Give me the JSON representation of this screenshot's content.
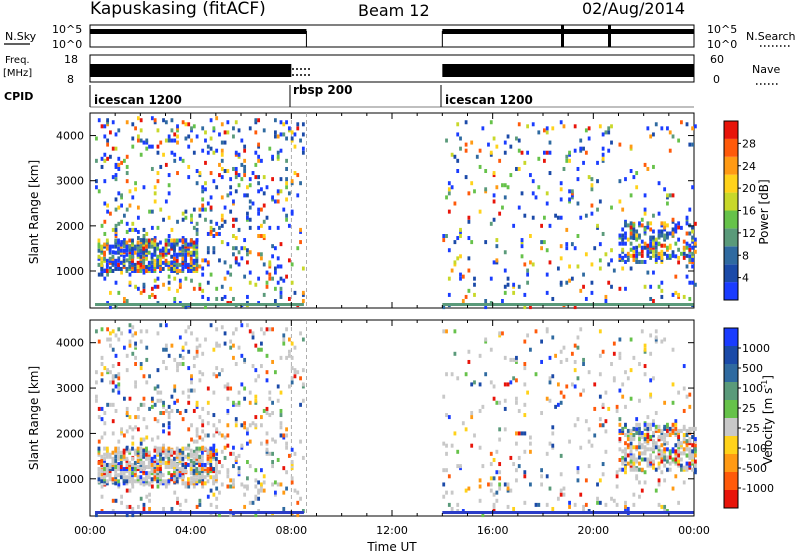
{
  "header": {
    "station": "Kapuskasing (fitACF)",
    "beam": "Beam 12",
    "date": "02/Aug/2014"
  },
  "labels": {
    "nsky": "N.Sky",
    "nsearch": "N.Search",
    "freq": "Freq.",
    "freq_unit": "[MHz]",
    "nave": "Nave",
    "cpid": "CPID",
    "slant_range": "Slant Range [km]",
    "power": "Power [dB]",
    "velocity": "Velocity  [m s",
    "velocity_sup": "-1",
    "velocity_close": "]",
    "time_ut": "Time UT"
  },
  "noise_panel": {
    "left_ticks": [
      "10^5",
      "10^0"
    ],
    "right_ticks": [
      "10^5",
      "10^0"
    ],
    "data_segments_ut": [
      [
        0.0,
        8.6
      ],
      [
        14.0,
        24.0
      ]
    ]
  },
  "freq_panel": {
    "left_ticks": [
      "18",
      "8"
    ],
    "right_ticks": [
      "60",
      "0"
    ],
    "data_segments_ut": [
      [
        0.0,
        8.0
      ],
      [
        14.0,
        24.0
      ]
    ]
  },
  "cpid_panel": {
    "segments": [
      {
        "start": 0.0,
        "label": "icescan 1200"
      },
      {
        "start": 8.0,
        "label": "rbsp 200"
      },
      {
        "start": 14.0,
        "label": "icescan 1200"
      }
    ]
  },
  "chart_data": [
    {
      "type": "heatmap",
      "title": "Power",
      "ylabel": "Slant Range [km]",
      "xlim_ut": [
        0,
        24
      ],
      "ylim_km": [
        180,
        4500
      ],
      "y_ticks": [
        "1000",
        "2000",
        "3000",
        "4000"
      ],
      "colorbar_label": "Power [dB]",
      "colorbar_ticks": [
        "4",
        "8",
        "12",
        "16",
        "20",
        "24",
        "28"
      ],
      "colorbar_colors": [
        "#1a3cff",
        "#1b4aa8",
        "#2f6aa0",
        "#5a9a7a",
        "#66c24a",
        "#c8d82a",
        "#ffd21a",
        "#ff9a14",
        "#ff5a0a",
        "#e8140a"
      ],
      "scatter_regions_ut_km": [
        {
          "t0": 0.2,
          "t1": 8.5,
          "r0": 200,
          "r1": 4400,
          "density": 0.08
        },
        {
          "t0": 0.3,
          "t1": 4.2,
          "r0": 1000,
          "r1": 1700,
          "density": 0.55
        },
        {
          "t0": 14.0,
          "t1": 24.0,
          "r0": 200,
          "r1": 4300,
          "density": 0.04
        },
        {
          "t0": 21.0,
          "t1": 24.0,
          "r0": 1200,
          "r1": 2100,
          "density": 0.35
        }
      ]
    },
    {
      "type": "heatmap",
      "title": "Velocity",
      "ylabel": "Slant Range [km]",
      "xlim_ut": [
        0,
        24
      ],
      "ylim_km": [
        180,
        4500
      ],
      "y_ticks": [
        "1000",
        "2000",
        "3000",
        "4000"
      ],
      "x_ticks": [
        "00:00",
        "04:00",
        "08:00",
        "12:00",
        "16:00",
        "20:00",
        "00:00"
      ],
      "colorbar_label": "Velocity [m s-1]",
      "colorbar_ticks": [
        "1000",
        "500",
        "100",
        "25",
        "-25",
        "-100",
        "-500",
        "-1000"
      ],
      "colorbar_colors": [
        "#1a3cff",
        "#1b4aa8",
        "#2f6aa0",
        "#5a9a7a",
        "#66c24a",
        "#c8c8c8",
        "#ffd21a",
        "#ff9a14",
        "#ff5a0a",
        "#e8140a"
      ],
      "scatter_regions_ut_km": [
        {
          "t0": 0.2,
          "t1": 8.5,
          "r0": 200,
          "r1": 4400,
          "density": 0.08
        },
        {
          "t0": 0.3,
          "t1": 5.0,
          "r0": 900,
          "r1": 1700,
          "density": 0.55
        },
        {
          "t0": 14.0,
          "t1": 24.0,
          "r0": 200,
          "r1": 4300,
          "density": 0.04
        },
        {
          "t0": 21.0,
          "t1": 24.0,
          "r0": 1200,
          "r1": 2200,
          "density": 0.35
        }
      ]
    }
  ]
}
